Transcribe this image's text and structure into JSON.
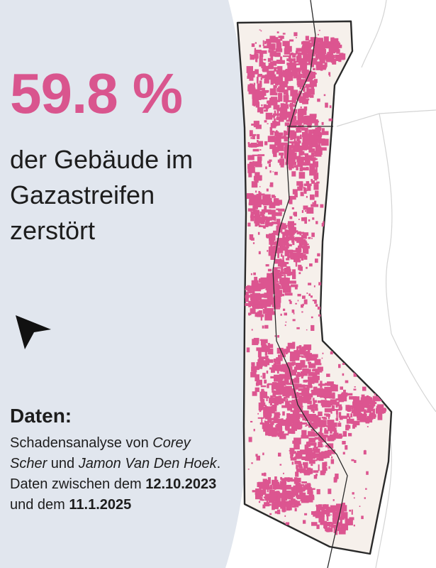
{
  "colors": {
    "accent": "#d9558e",
    "damage": "#dc5590",
    "sea": "#e1e6ee",
    "land": "#f6f0eb",
    "border": "#2a2a2a",
    "neighbor_line": "#d4d4d4",
    "text": "#1d1d1d"
  },
  "headline": {
    "value": "59.8 %",
    "text": "der Gebäude im Gazastreifen zerstört"
  },
  "icons": {
    "north_arrow": "north-arrow-icon"
  },
  "source": {
    "heading": "Daten:",
    "intro": "Schadensanalyse von ",
    "author1": "Corey Scher",
    "and1": " und ",
    "author2": "Jamon Van Den Hoek",
    "dates_intro": ". Daten zwischen dem ",
    "date_start": "12.10.2023",
    "and2": " und dem ",
    "date_end": "11.1.2025"
  }
}
